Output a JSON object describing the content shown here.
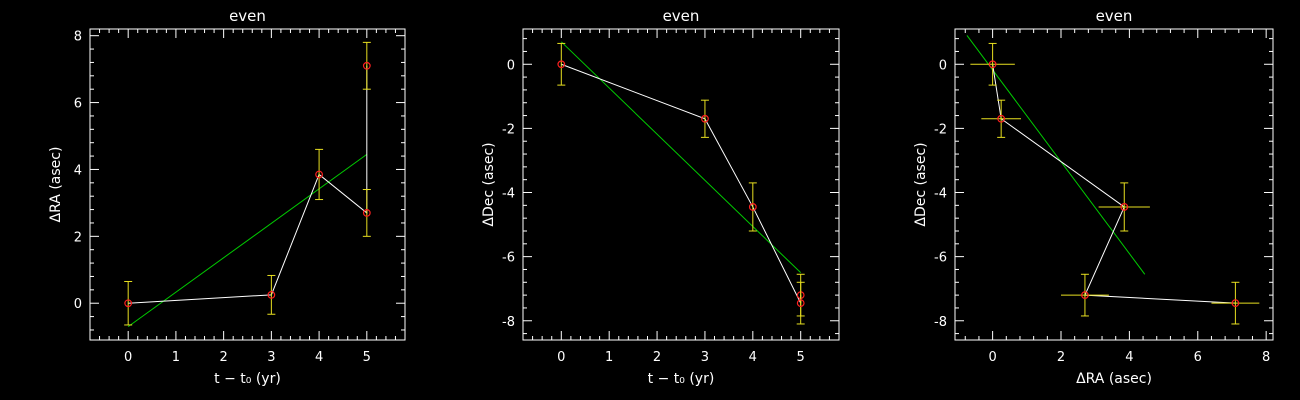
{
  "colors": {
    "background": "#000000",
    "axes": "#ffffff",
    "data_line": "#ffffff",
    "fit_line": "#00cc00",
    "markers": "#ff2020",
    "error_bars": "#e8e020"
  },
  "chart_data": [
    {
      "type": "scatter",
      "title": "even",
      "xlabel": "t − t₀ (yr)",
      "ylabel": "ΔRA (asec)",
      "xlim": [
        -0.8,
        5.8
      ],
      "ylim": [
        -1.1,
        8.2
      ],
      "xticks": [
        0,
        1,
        2,
        3,
        4,
        5
      ],
      "yticks": [
        0,
        2,
        4,
        6,
        8
      ],
      "grid": false,
      "points": [
        {
          "x": 0,
          "y": 0.0,
          "yerr": 0.65,
          "xerr": 0
        },
        {
          "x": 3,
          "y": 0.25,
          "yerr": 0.58,
          "xerr": 0
        },
        {
          "x": 4,
          "y": 3.85,
          "yerr": 0.75,
          "xerr": 0
        },
        {
          "x": 5,
          "y": 2.7,
          "yerr": 0.7,
          "xerr": 0
        },
        {
          "x": 5,
          "y": 7.1,
          "yerr": 0.7,
          "xerr": 0
        }
      ],
      "connect_order": [
        0,
        1,
        2,
        3,
        4
      ],
      "fit_line": {
        "x": [
          0,
          5
        ],
        "y": [
          -0.7,
          4.45
        ]
      }
    },
    {
      "type": "scatter",
      "title": "even",
      "xlabel": "t − t₀ (yr)",
      "ylabel": "ΔDec (asec)",
      "xlim": [
        -0.8,
        5.8
      ],
      "ylim": [
        -8.6,
        1.1
      ],
      "xticks": [
        0,
        1,
        2,
        3,
        4,
        5
      ],
      "yticks": [
        -8,
        -6,
        -4,
        -2,
        0
      ],
      "grid": false,
      "points": [
        {
          "x": 0,
          "y": 0.0,
          "yerr": 0.65,
          "xerr": 0
        },
        {
          "x": 3,
          "y": -1.7,
          "yerr": 0.58,
          "xerr": 0
        },
        {
          "x": 4,
          "y": -4.45,
          "yerr": 0.75,
          "xerr": 0
        },
        {
          "x": 5,
          "y": -7.2,
          "yerr": 0.65,
          "xerr": 0
        },
        {
          "x": 5,
          "y": -7.45,
          "yerr": 0.65,
          "xerr": 0
        }
      ],
      "connect_order": [
        0,
        1,
        2,
        4,
        3
      ],
      "fit_line": {
        "x": [
          0,
          5
        ],
        "y": [
          0.7,
          -6.5
        ]
      }
    },
    {
      "type": "scatter",
      "title": "even",
      "xlabel": "ΔRA (asec)",
      "ylabel": "ΔDec (asec)",
      "xlim": [
        -1.1,
        8.2
      ],
      "ylim": [
        -8.6,
        1.1
      ],
      "xticks": [
        0,
        2,
        4,
        6,
        8
      ],
      "yticks": [
        -8,
        -6,
        -4,
        -2,
        0
      ],
      "grid": false,
      "points": [
        {
          "x": 0.0,
          "y": 0.0,
          "xerr": 0.65,
          "yerr": 0.65
        },
        {
          "x": 0.25,
          "y": -1.7,
          "xerr": 0.58,
          "yerr": 0.58
        },
        {
          "x": 3.85,
          "y": -4.45,
          "xerr": 0.75,
          "yerr": 0.75
        },
        {
          "x": 2.7,
          "y": -7.2,
          "xerr": 0.7,
          "yerr": 0.65
        },
        {
          "x": 7.1,
          "y": -7.45,
          "xerr": 0.7,
          "yerr": 0.65
        }
      ],
      "connect_order": [
        0,
        1,
        2,
        3,
        4
      ],
      "fit_line": {
        "x": [
          -0.75,
          4.45
        ],
        "y": [
          0.9,
          -6.55
        ]
      }
    }
  ]
}
